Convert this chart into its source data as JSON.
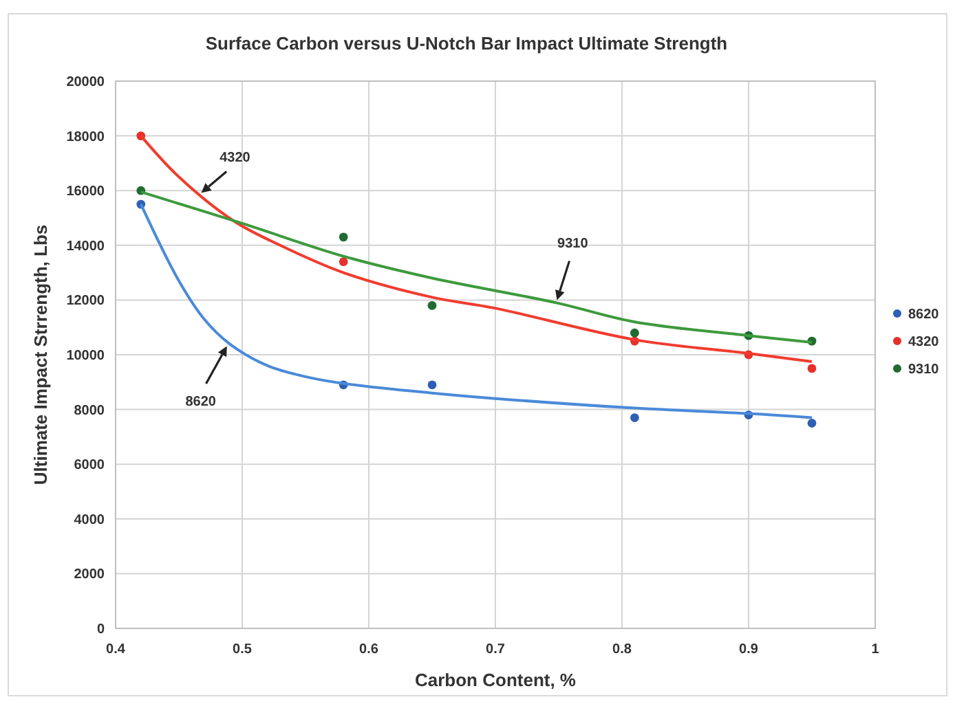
{
  "chart_data": {
    "type": "scatter",
    "title": "Surface Carbon versus U-Notch Bar Impact Ultimate Strength",
    "xlabel": "Carbon Content, %",
    "ylabel": "Ultimate Impact Strrength, Lbs",
    "xlim": [
      0.4,
      1
    ],
    "xticks": [
      0.4,
      0.5,
      0.6,
      0.7,
      0.8,
      0.9,
      1
    ],
    "ylim": [
      0,
      20000
    ],
    "yticks": [
      0,
      2000,
      4000,
      6000,
      8000,
      10000,
      12000,
      14000,
      16000,
      18000,
      20000
    ],
    "grid": true,
    "legend": "right",
    "marker": "circle",
    "x": [
      0.42,
      0.58,
      0.65,
      0.81,
      0.9,
      0.95
    ],
    "series": [
      {
        "name": "8620",
        "color": "#2f5fb5",
        "values": [
          15500,
          8900,
          8900,
          7700,
          7800,
          7500
        ]
      },
      {
        "name": "4320",
        "color": "#e8302a",
        "values": [
          18000,
          13400,
          null,
          10500,
          10000,
          9500
        ]
      },
      {
        "name": "9310",
        "color": "#1f6b32",
        "values": [
          16000,
          14300,
          11800,
          10800,
          10700,
          10500
        ]
      },
      {
        "type": "line",
        "color": "#4a8ad8",
        "marker": "none",
        "x": [
          0.42,
          0.45,
          0.47,
          0.49,
          0.52,
          0.55,
          0.58,
          0.65,
          0.7,
          0.81,
          0.9,
          0.95
        ],
        "values": [
          15500,
          12700,
          11300,
          10400,
          9600,
          9200,
          8950,
          8600,
          8400,
          8050,
          7850,
          7700
        ]
      },
      {
        "type": "line",
        "color": "#f03c2e",
        "marker": "none",
        "x": [
          0.42,
          0.45,
          0.493,
          0.53,
          0.58,
          0.65,
          0.7,
          0.81,
          0.9,
          0.95
        ],
        "values": [
          18000,
          16500,
          14900,
          14000,
          13000,
          12100,
          11700,
          10550,
          10050,
          9750
        ]
      },
      {
        "type": "line",
        "color": "#3d9a3d",
        "marker": "none",
        "x": [
          0.42,
          0.5,
          0.58,
          0.65,
          0.748,
          0.81,
          0.9,
          0.95
        ],
        "values": [
          15950,
          14800,
          13600,
          12800,
          11900,
          11200,
          10700,
          10450
        ]
      }
    ],
    "annotations": [
      {
        "text": "4320",
        "x": 0.466,
        "y": 15850
      },
      {
        "text": "9310",
        "x": 0.748,
        "y": 11900
      },
      {
        "text": "8620",
        "x": 0.489,
        "y": 10400
      }
    ]
  }
}
